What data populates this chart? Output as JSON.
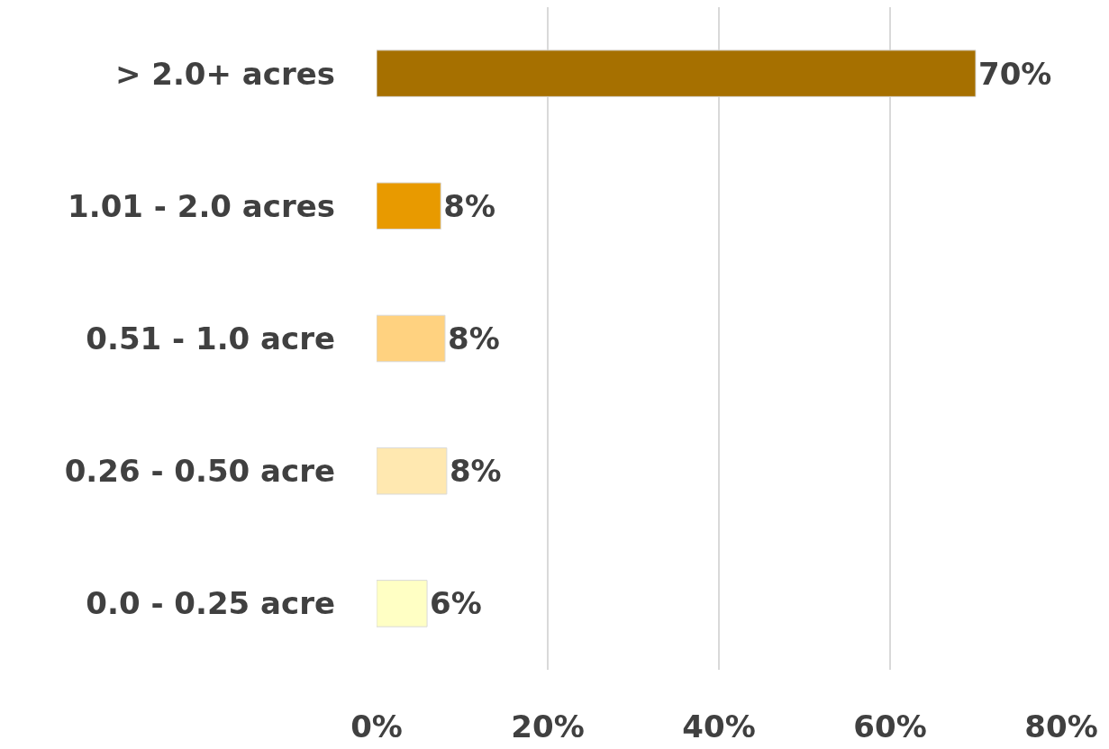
{
  "chart_data": {
    "type": "bar",
    "orientation": "horizontal",
    "categories": [
      "> 2.0+ acres",
      "1.01 - 2.0 acres",
      "0.51 - 1.0 acre",
      "0.26 - 0.50 acre",
      "0.0 - 0.25 acre"
    ],
    "values": [
      70,
      7.5,
      8,
      8.2,
      5.9
    ],
    "value_labels": [
      "70%",
      "8%",
      "8%",
      "8%",
      "6%"
    ],
    "colors": [
      "#a67000",
      "#e89a00",
      "#ffd280",
      "#ffe8b0",
      "#ffffc4"
    ],
    "xlim": [
      0,
      80
    ],
    "xticks": [
      {
        "value": 0,
        "label": "0%"
      },
      {
        "value": 20,
        "label": "20%"
      },
      {
        "value": 40,
        "label": "40%"
      },
      {
        "value": 60,
        "label": "60%"
      },
      {
        "value": 80,
        "label": "80%"
      }
    ],
    "grid": "x"
  }
}
